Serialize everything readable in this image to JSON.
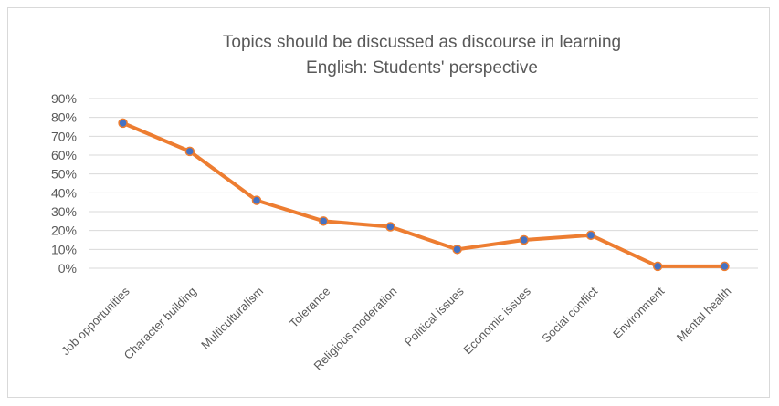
{
  "chart_data": {
    "type": "line",
    "title_line1": "Topics should be discussed as discourse in learning",
    "title_line2": "English: Students' perspective",
    "xlabel": "",
    "ylabel": "",
    "ylim": [
      0,
      90
    ],
    "y_ticks": [
      "0%",
      "10%",
      "20%",
      "30%",
      "40%",
      "50%",
      "60%",
      "70%",
      "80%",
      "90%"
    ],
    "grid": true,
    "categories": [
      "Job opportunities",
      "Character building",
      "Multiculturalism",
      "Tolerance",
      "Religious moderation",
      "Political issues",
      "Economic issues",
      "Social conflict",
      "Environment",
      "Mental health"
    ],
    "series": [
      {
        "values": [
          77,
          62,
          36,
          25,
          22,
          10,
          15,
          17.5,
          1,
          1
        ],
        "line_color": "#ED7D31",
        "marker_color": "#4472C4"
      }
    ]
  }
}
